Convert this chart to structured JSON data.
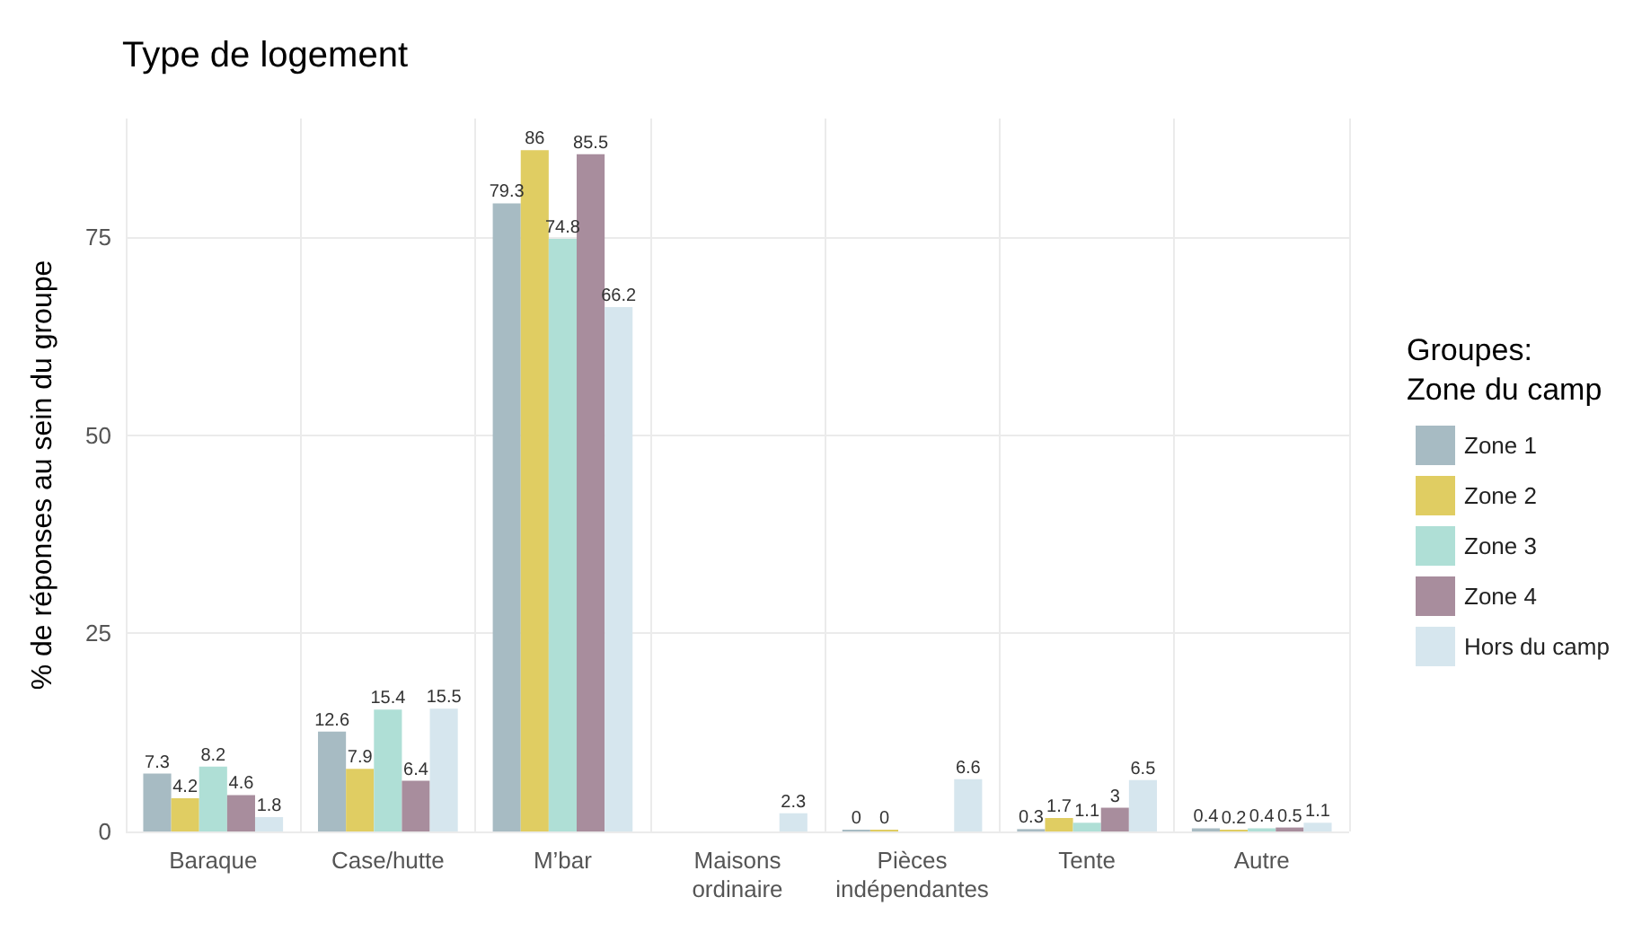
{
  "chart_data": {
    "type": "bar",
    "title": "Type de logement",
    "ylabel": "% de réponses au sein du groupe",
    "legend_title": "Groupes:\nZone du camp",
    "categories": [
      "Baraque",
      "Case/hutte",
      "M’bar",
      "Maisons\nordinaire",
      "Pièces\nindépendantes",
      "Tente",
      "Autre"
    ],
    "series": [
      {
        "name": "Zone 1",
        "color": "#a7bbc3",
        "values": [
          7.3,
          12.6,
          79.3,
          null,
          0,
          0.3,
          0.4
        ]
      },
      {
        "name": "Zone 2",
        "color": "#e0cd62",
        "values": [
          4.2,
          7.9,
          86,
          null,
          0,
          1.7,
          0.2
        ]
      },
      {
        "name": "Zone 3",
        "color": "#afdfd6",
        "values": [
          8.2,
          15.4,
          74.8,
          null,
          null,
          1.1,
          0.4
        ]
      },
      {
        "name": "Zone 4",
        "color": "#a88d9d",
        "values": [
          4.6,
          6.4,
          85.5,
          null,
          null,
          3,
          0.5
        ]
      },
      {
        "name": "Hors du camp",
        "color": "#d6e6ee",
        "values": [
          1.8,
          15.5,
          66.2,
          2.3,
          6.6,
          6.5,
          1.1
        ]
      }
    ],
    "ylim": [
      0,
      90
    ],
    "yticks": [
      0,
      25,
      50,
      75
    ],
    "grid": true,
    "legend": "right",
    "data_labels": true
  }
}
